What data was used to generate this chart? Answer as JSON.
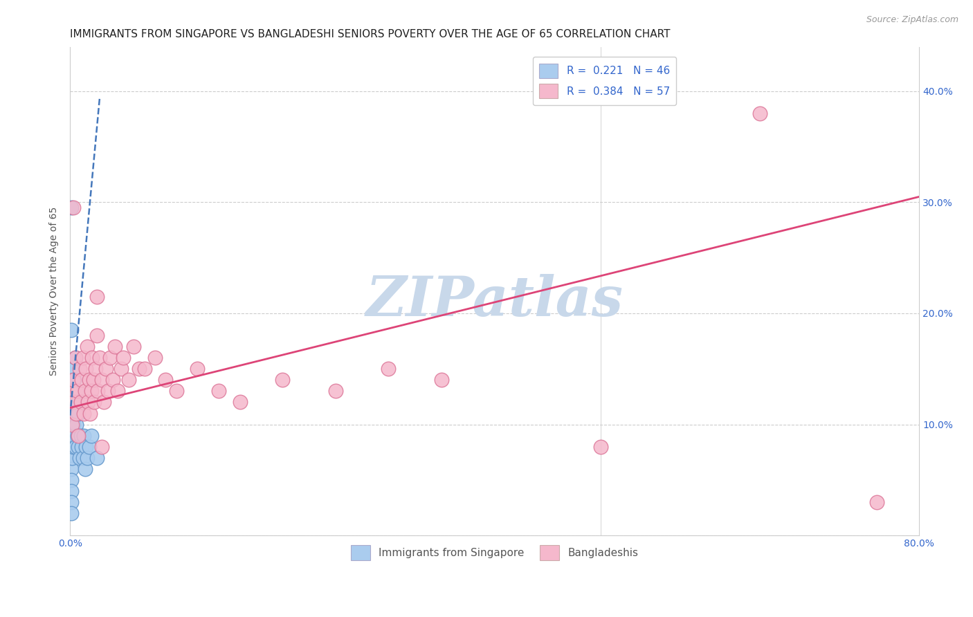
{
  "title": "IMMIGRANTS FROM SINGAPORE VS BANGLADESHI SENIORS POVERTY OVER THE AGE OF 65 CORRELATION CHART",
  "source": "Source: ZipAtlas.com",
  "ylabel": "Seniors Poverty Over the Age of 65",
  "xlim": [
    0.0,
    0.8
  ],
  "ylim": [
    0.0,
    0.44
  ],
  "series1_label": "Immigrants from Singapore",
  "series2_label": "Bangladeshis",
  "series1_color": "#aaccee",
  "series2_color": "#f5b8cc",
  "series1_edge": "#6699cc",
  "series2_edge": "#dd7799",
  "watermark": "ZIPatlas",
  "watermark_color": "#c8d8ea",
  "title_fontsize": 11,
  "axis_label_fontsize": 10,
  "tick_fontsize": 10,
  "legend_fontsize": 11,
  "singapore_x": [
    0.001,
    0.001,
    0.001,
    0.001,
    0.001,
    0.001,
    0.001,
    0.001,
    0.001,
    0.001,
    0.002,
    0.002,
    0.002,
    0.002,
    0.002,
    0.003,
    0.003,
    0.003,
    0.003,
    0.004,
    0.004,
    0.004,
    0.005,
    0.005,
    0.005,
    0.006,
    0.006,
    0.007,
    0.007,
    0.008,
    0.008,
    0.009,
    0.01,
    0.011,
    0.012,
    0.013,
    0.014,
    0.015,
    0.016,
    0.018,
    0.02,
    0.025,
    0.001,
    0.001,
    0.001,
    0.001
  ],
  "singapore_y": [
    0.07,
    0.08,
    0.09,
    0.1,
    0.11,
    0.12,
    0.13,
    0.06,
    0.05,
    0.04,
    0.08,
    0.09,
    0.12,
    0.14,
    0.07,
    0.1,
    0.12,
    0.15,
    0.08,
    0.09,
    0.11,
    0.14,
    0.08,
    0.12,
    0.16,
    0.1,
    0.13,
    0.09,
    0.12,
    0.08,
    0.11,
    0.07,
    0.09,
    0.08,
    0.07,
    0.09,
    0.06,
    0.08,
    0.07,
    0.08,
    0.09,
    0.07,
    0.295,
    0.185,
    0.03,
    0.02
  ],
  "bangladeshi_x": [
    0.001,
    0.002,
    0.003,
    0.004,
    0.005,
    0.006,
    0.007,
    0.008,
    0.009,
    0.01,
    0.011,
    0.012,
    0.013,
    0.014,
    0.015,
    0.016,
    0.017,
    0.018,
    0.019,
    0.02,
    0.021,
    0.022,
    0.023,
    0.024,
    0.025,
    0.026,
    0.028,
    0.03,
    0.032,
    0.034,
    0.036,
    0.038,
    0.04,
    0.042,
    0.045,
    0.048,
    0.05,
    0.055,
    0.06,
    0.065,
    0.07,
    0.08,
    0.09,
    0.1,
    0.12,
    0.14,
    0.16,
    0.2,
    0.25,
    0.3,
    0.35,
    0.5,
    0.65,
    0.76,
    0.003,
    0.025,
    0.03
  ],
  "bangladeshi_y": [
    0.13,
    0.1,
    0.14,
    0.12,
    0.16,
    0.11,
    0.13,
    0.09,
    0.15,
    0.12,
    0.14,
    0.16,
    0.11,
    0.13,
    0.15,
    0.17,
    0.12,
    0.14,
    0.11,
    0.13,
    0.16,
    0.14,
    0.12,
    0.15,
    0.18,
    0.13,
    0.16,
    0.14,
    0.12,
    0.15,
    0.13,
    0.16,
    0.14,
    0.17,
    0.13,
    0.15,
    0.16,
    0.14,
    0.17,
    0.15,
    0.15,
    0.16,
    0.14,
    0.13,
    0.15,
    0.13,
    0.12,
    0.14,
    0.13,
    0.15,
    0.14,
    0.08,
    0.38,
    0.03,
    0.295,
    0.215,
    0.08
  ],
  "sing_trend_x0": 0.0,
  "sing_trend_y0": 0.108,
  "sing_trend_x1": 0.028,
  "sing_trend_y1": 0.395,
  "bang_trend_x0": 0.0,
  "bang_trend_y0": 0.115,
  "bang_trend_x1": 0.8,
  "bang_trend_y1": 0.305
}
